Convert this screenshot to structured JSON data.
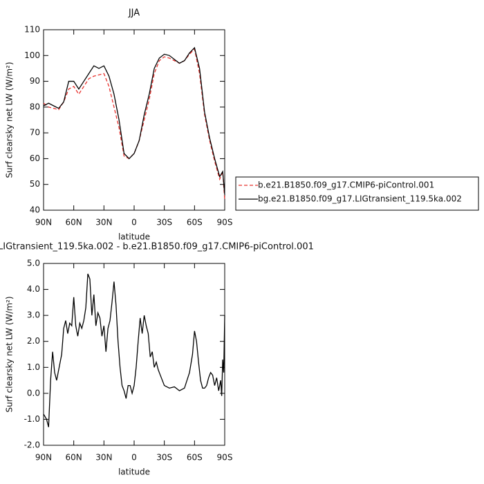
{
  "chart_data": [
    {
      "type": "line",
      "title": "JJA",
      "x_label": "latitude",
      "y_label": "Surf clearsky net LW (W/m²)",
      "xlim": [
        90,
        -90
      ],
      "xticks": [
        {
          "value": 90,
          "label": "90N"
        },
        {
          "value": 60,
          "label": "60N"
        },
        {
          "value": 30,
          "label": "30N"
        },
        0,
        {
          "value": -30,
          "label": "30S"
        },
        {
          "value": -60,
          "label": "60S"
        },
        {
          "value": -90,
          "label": "90S"
        }
      ],
      "ylim": [
        40,
        110
      ],
      "yticks": [
        40,
        50,
        60,
        70,
        80,
        90,
        100,
        110
      ],
      "x": [
        90,
        85,
        80,
        75,
        70,
        65,
        60,
        55,
        50,
        45,
        40,
        35,
        30,
        25,
        20,
        15,
        10,
        5,
        0,
        -5,
        -10,
        -15,
        -20,
        -25,
        -30,
        -35,
        -40,
        -45,
        -50,
        -55,
        -60,
        -65,
        -70,
        -75,
        -80,
        -85,
        -88,
        -90
      ],
      "legend": "right",
      "series": [
        {
          "name": "b.e21.B1850.f09_g17.CMIP6-piControl.001",
          "color": "#e8302c",
          "line_style": "dashed",
          "values": [
            81.5,
            80,
            79.5,
            79,
            82,
            87,
            88,
            85,
            88,
            91,
            92,
            92.5,
            93,
            88,
            80,
            72,
            61,
            60,
            62,
            67,
            75,
            83,
            93,
            98,
            99.5,
            99,
            98,
            97,
            98,
            100.5,
            102.5,
            93,
            77,
            67,
            59,
            52,
            55,
            44
          ]
        },
        {
          "name": "bg.e21.B1850.f09_g17.LIGtransient_119.5ka.002",
          "color": "#000000",
          "line_style": "solid",
          "values": [
            80.5,
            81.5,
            80.5,
            79.5,
            82,
            90,
            90,
            87,
            90,
            93,
            96,
            95,
            96,
            92,
            85,
            75,
            62,
            60,
            62,
            67,
            77,
            85,
            95,
            99,
            100.5,
            100,
            98.5,
            97,
            98,
            101,
            103,
            95,
            78,
            68,
            60,
            53,
            55,
            46
          ]
        }
      ]
    },
    {
      "type": "line",
      "title": "LIGtransient_119.5ka.002 - b.e21.B1850.f09_g17.CMIP6-piControl.001",
      "x_label": "latitude",
      "y_label": "Surf clearsky net LW (W/m²)",
      "xlim": [
        90,
        -90
      ],
      "xticks": [
        {
          "value": 90,
          "label": "90N"
        },
        {
          "value": 60,
          "label": "60N"
        },
        {
          "value": 30,
          "label": "30N"
        },
        0,
        {
          "value": -30,
          "label": "30S"
        },
        {
          "value": -60,
          "label": "60S"
        },
        {
          "value": -90,
          "label": "90S"
        }
      ],
      "ylim": [
        -2,
        5
      ],
      "yticks": [
        {
          "value": -2,
          "label": "-2.0"
        },
        {
          "value": -1,
          "label": "-1.0"
        },
        {
          "value": 0,
          "label": "0.0"
        },
        {
          "value": 1,
          "label": "1.0"
        },
        {
          "value": 2,
          "label": "2.0"
        },
        {
          "value": 3,
          "label": "3.0"
        },
        {
          "value": 4,
          "label": "4.0"
        },
        {
          "value": 5,
          "label": "5.0"
        }
      ],
      "x": [
        90,
        87,
        85,
        83,
        81,
        79,
        77,
        75,
        72,
        70,
        68,
        66,
        64,
        62,
        60,
        58,
        56,
        54,
        52,
        50,
        48,
        46,
        44,
        42,
        40,
        38,
        36,
        34,
        32,
        30,
        28,
        26,
        24,
        22,
        20,
        18,
        16,
        14,
        12,
        10,
        8,
        6,
        4,
        2,
        0,
        -2,
        -4,
        -6,
        -8,
        -10,
        -12,
        -14,
        -16,
        -18,
        -20,
        -22,
        -24,
        -26,
        -28,
        -30,
        -35,
        -40,
        -45,
        -50,
        -55,
        -58,
        -60,
        -62,
        -64,
        -66,
        -68,
        -70,
        -72,
        -74,
        -76,
        -78,
        -80,
        -82,
        -84,
        -86,
        -87,
        -88,
        -89,
        -90
      ],
      "series": [
        {
          "color": "#000000",
          "line_style": "solid",
          "values": [
            -0.8,
            -1.0,
            -1.3,
            0.5,
            1.6,
            0.8,
            0.5,
            0.9,
            1.5,
            2.5,
            2.8,
            2.3,
            2.7,
            2.6,
            3.7,
            2.6,
            2.2,
            2.7,
            2.5,
            2.8,
            3.3,
            4.6,
            4.4,
            3.0,
            3.8,
            2.6,
            3.1,
            2.9,
            2.2,
            2.6,
            1.6,
            2.5,
            2.8,
            3.5,
            4.3,
            3.4,
            2.0,
            1.0,
            0.3,
            0.1,
            -0.2,
            0.3,
            0.3,
            0.0,
            0.3,
            1.0,
            2.0,
            2.9,
            2.3,
            3.0,
            2.6,
            2.3,
            1.4,
            1.6,
            1.0,
            1.2,
            0.9,
            0.7,
            0.5,
            0.3,
            0.2,
            0.25,
            0.1,
            0.2,
            0.8,
            1.5,
            2.4,
            2.0,
            1.2,
            0.5,
            0.2,
            0.2,
            0.3,
            0.6,
            0.8,
            0.7,
            0.3,
            0.6,
            0.1,
            0.5,
            -0.1,
            1.3,
            0.8,
            3.0
          ]
        }
      ]
    }
  ]
}
